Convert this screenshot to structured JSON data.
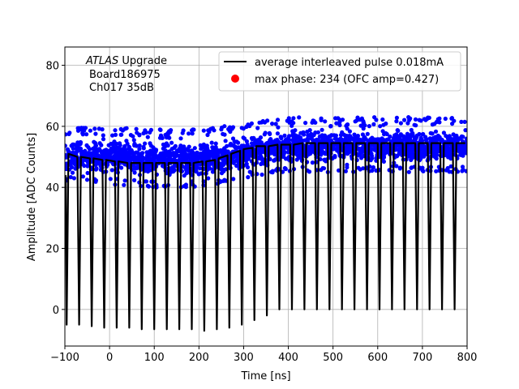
{
  "chart_data": {
    "type": "scatter",
    "title": "",
    "xlabel": "Time [ns]",
    "ylabel": "Amplitude [ADC Counts]",
    "xlim": [
      -100,
      800
    ],
    "ylim": [
      -12,
      86
    ],
    "xticks": [
      -100,
      0,
      100,
      200,
      300,
      400,
      500,
      600,
      700,
      800
    ],
    "yticks": [
      0,
      20,
      40,
      60,
      80
    ],
    "grid": true,
    "legend_position": "top-right",
    "annotation": {
      "line1_italic": "ATLAS",
      "line1_rest": " Upgrade",
      "line2": "Board186975",
      "line3": "Ch017 35dB"
    },
    "series": [
      {
        "name": "average interleaved pulse 0.018mA",
        "kind": "line",
        "color": "#000000",
        "points": [
          [
            -98,
            44
          ],
          [
            -96,
            -5
          ],
          [
            -92,
            51
          ],
          [
            -72,
            50
          ],
          [
            -68,
            -5
          ],
          [
            -64,
            50
          ],
          [
            -44,
            49.5
          ],
          [
            -40,
            -5.5
          ],
          [
            -36,
            49.5
          ],
          [
            -16,
            49
          ],
          [
            -12,
            -6
          ],
          [
            -8,
            49
          ],
          [
            12,
            48.5
          ],
          [
            16,
            -6
          ],
          [
            20,
            48.5
          ],
          [
            40,
            48
          ],
          [
            44,
            -6
          ],
          [
            48,
            48
          ],
          [
            68,
            48
          ],
          [
            72,
            -6.5
          ],
          [
            76,
            48
          ],
          [
            96,
            48
          ],
          [
            100,
            -6.5
          ],
          [
            104,
            48
          ],
          [
            124,
            48
          ],
          [
            128,
            -6.5
          ],
          [
            132,
            48
          ],
          [
            152,
            48
          ],
          [
            156,
            -6.5
          ],
          [
            160,
            48
          ],
          [
            180,
            48
          ],
          [
            184,
            -6.5
          ],
          [
            188,
            48
          ],
          [
            208,
            48.5
          ],
          [
            212,
            -7
          ],
          [
            216,
            48.5
          ],
          [
            236,
            49
          ],
          [
            240,
            -6.5
          ],
          [
            244,
            49.5
          ],
          [
            264,
            50.5
          ],
          [
            268,
            -6
          ],
          [
            272,
            51
          ],
          [
            292,
            52
          ],
          [
            296,
            -5
          ],
          [
            300,
            52.5
          ],
          [
            320,
            53
          ],
          [
            324,
            -3.5
          ],
          [
            328,
            53.5
          ],
          [
            348,
            53.5
          ],
          [
            352,
            -2
          ],
          [
            356,
            53.5
          ],
          [
            376,
            54
          ],
          [
            380,
            0
          ],
          [
            384,
            54
          ],
          [
            404,
            54
          ],
          [
            408,
            0
          ],
          [
            412,
            54
          ],
          [
            432,
            54.5
          ],
          [
            436,
            0
          ],
          [
            440,
            54.5
          ],
          [
            460,
            54.5
          ],
          [
            464,
            0
          ],
          [
            468,
            54.5
          ],
          [
            488,
            54.5
          ],
          [
            492,
            0
          ],
          [
            496,
            54.5
          ],
          [
            516,
            54.5
          ],
          [
            520,
            0
          ],
          [
            524,
            54.5
          ],
          [
            544,
            54.5
          ],
          [
            548,
            0
          ],
          [
            552,
            54.5
          ],
          [
            572,
            54.5
          ],
          [
            576,
            0
          ],
          [
            580,
            54.5
          ],
          [
            600,
            54.5
          ],
          [
            604,
            0
          ],
          [
            608,
            54.5
          ],
          [
            628,
            54.5
          ],
          [
            632,
            0
          ],
          [
            636,
            54.5
          ],
          [
            656,
            54.5
          ],
          [
            660,
            0
          ],
          [
            664,
            54.5
          ],
          [
            684,
            54.5
          ],
          [
            688,
            0
          ],
          [
            692,
            54.5
          ],
          [
            712,
            54.5
          ],
          [
            716,
            0
          ],
          [
            720,
            54.5
          ],
          [
            740,
            54.5
          ],
          [
            744,
            0
          ],
          [
            748,
            54.5
          ],
          [
            768,
            54.5
          ],
          [
            772,
            0
          ],
          [
            776,
            54.5
          ],
          [
            796,
            54.5
          ]
        ]
      },
      {
        "name": "samples",
        "kind": "scatter",
        "color": "#0000ff",
        "envelope": [
          [
            -100,
            44,
            57
          ],
          [
            0,
            43,
            57
          ],
          [
            100,
            42,
            56
          ],
          [
            200,
            42,
            56
          ],
          [
            250,
            43,
            57
          ],
          [
            300,
            45,
            58
          ],
          [
            350,
            46,
            59
          ],
          [
            400,
            47,
            60
          ],
          [
            500,
            47,
            60
          ],
          [
            600,
            47,
            60
          ],
          [
            700,
            47,
            60
          ],
          [
            800,
            47,
            60
          ]
        ]
      },
      {
        "name": "max phase: 234 (OFC amp=0.427)",
        "kind": "marker",
        "color": "#ff0000",
        "points": []
      }
    ]
  }
}
